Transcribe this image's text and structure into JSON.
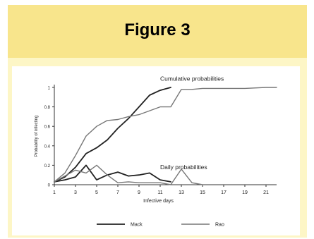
{
  "header": {
    "title": "Figure 3"
  },
  "chart_data": {
    "type": "line",
    "xlabel": "Infective days",
    "ylabel": "Probability of infecting",
    "xlim": [
      1,
      22
    ],
    "ylim": [
      0,
      1
    ],
    "x_ticks": [
      1,
      3,
      5,
      7,
      9,
      11,
      13,
      15,
      17,
      19,
      21
    ],
    "y_ticks": [
      0,
      0.2,
      0.4,
      0.6,
      0.8,
      1
    ],
    "y_tick_labels": [
      "0",
      "0.2",
      "0.4",
      "0.6",
      "0.8",
      "1"
    ],
    "legend_position": "bottom",
    "annotations": [
      {
        "text": "Cumulative probabilities",
        "x": 11,
        "y": 1.07
      },
      {
        "text": "Daily probabilities",
        "x": 11,
        "y": 0.16
      }
    ],
    "series": [
      {
        "name": "Mack",
        "group": "cumulative",
        "style": "solid",
        "color": "#222222",
        "x": [
          1,
          2,
          3,
          4,
          5,
          6,
          7,
          8,
          9,
          10,
          11,
          12
        ],
        "y": [
          0.03,
          0.08,
          0.18,
          0.32,
          0.38,
          0.46,
          0.58,
          0.68,
          0.8,
          0.92,
          0.97,
          1.0
        ]
      },
      {
        "name": "Rao",
        "group": "cumulative",
        "style": "solid",
        "color": "#777777",
        "x": [
          1,
          2,
          3,
          4,
          5,
          6,
          7,
          8,
          9,
          10,
          11,
          12,
          13,
          14,
          15,
          17,
          19,
          21,
          22
        ],
        "y": [
          0.03,
          0.12,
          0.3,
          0.5,
          0.6,
          0.66,
          0.67,
          0.7,
          0.72,
          0.76,
          0.8,
          0.8,
          0.98,
          0.98,
          0.99,
          0.99,
          0.99,
          1.0,
          1.0
        ]
      },
      {
        "name": "Mack",
        "group": "daily",
        "style": "solid",
        "color": "#222222",
        "x": [
          1,
          2,
          3,
          4,
          5,
          6,
          7,
          8,
          9,
          10,
          11,
          12
        ],
        "y": [
          0.03,
          0.05,
          0.08,
          0.2,
          0.05,
          0.1,
          0.13,
          0.09,
          0.1,
          0.12,
          0.05,
          0.03
        ]
      },
      {
        "name": "Rao",
        "group": "daily",
        "style": "solid",
        "color": "#777777",
        "x": [
          1,
          2,
          3,
          4,
          5,
          6,
          7,
          8,
          9,
          10,
          11,
          12,
          13,
          14,
          15
        ],
        "y": [
          0.03,
          0.09,
          0.15,
          0.12,
          0.2,
          0.1,
          0.02,
          0.03,
          0.02,
          0.02,
          0.02,
          0.0,
          0.16,
          0.02,
          0.0
        ]
      }
    ]
  }
}
